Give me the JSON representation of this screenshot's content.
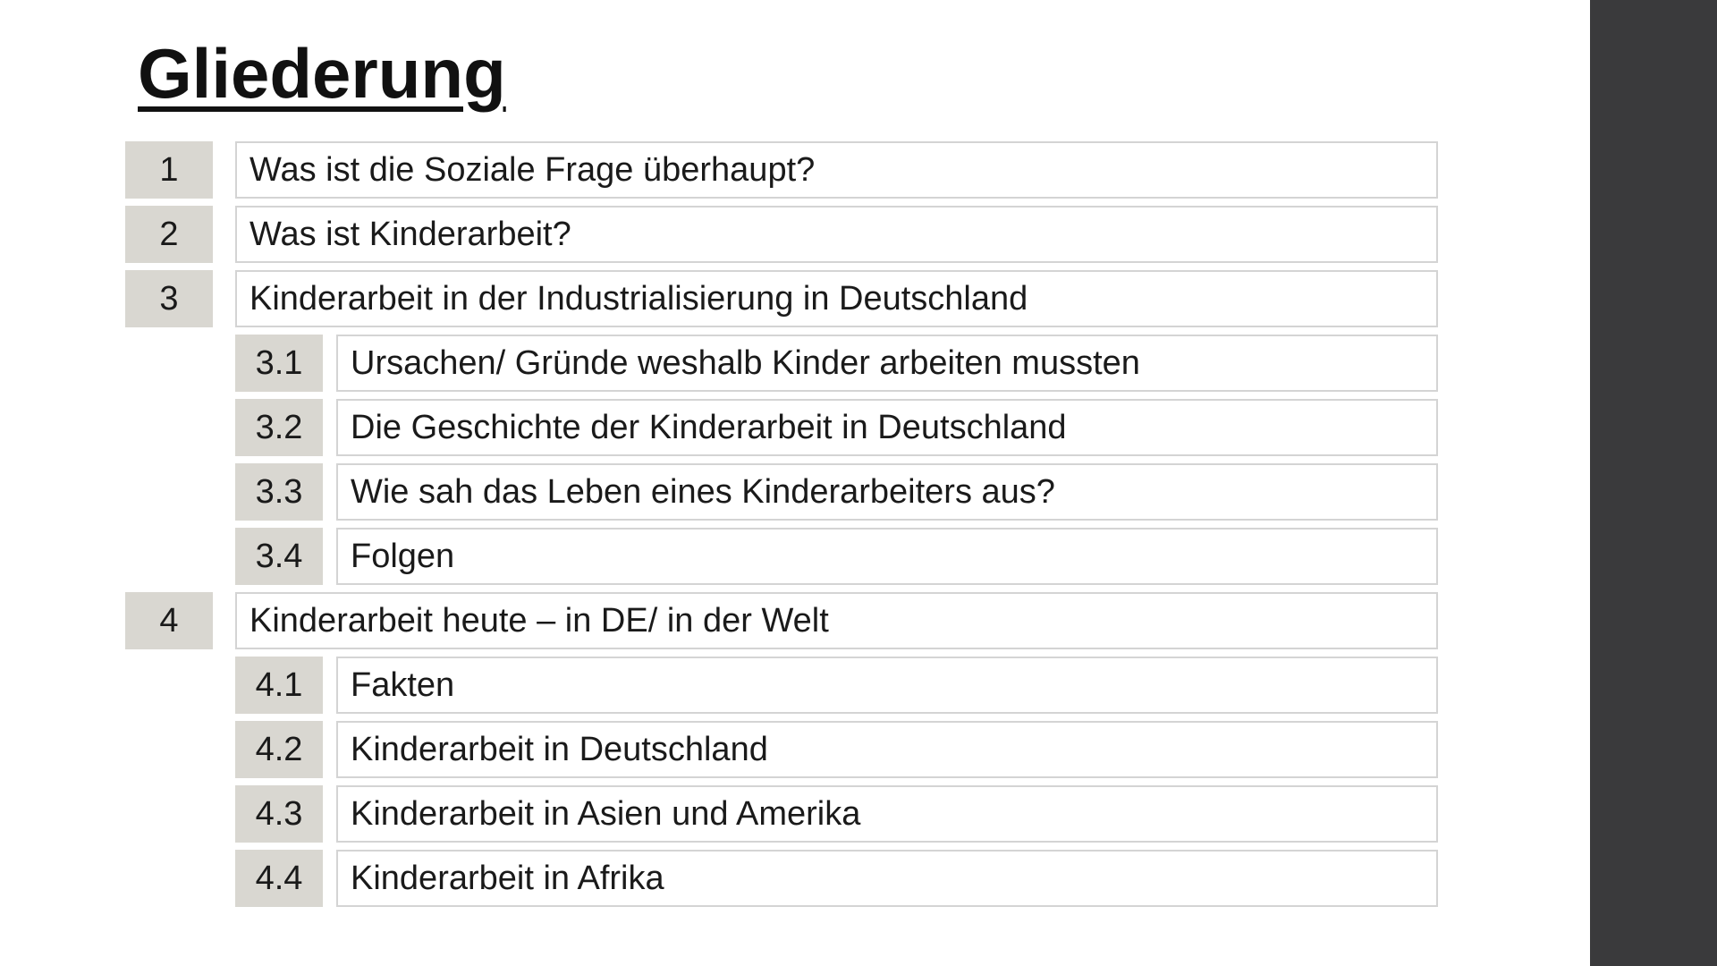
{
  "slide": {
    "title": "Gliederung",
    "colors": {
      "number_box": "#d9d7d1",
      "border": "#d4d4d4",
      "sidebar": "#3a3a3c",
      "text": "#1a1a1a"
    },
    "items": [
      {
        "number": "1",
        "text": "Was ist die Soziale Frage überhaupt?",
        "level": 1
      },
      {
        "number": "2",
        "text": "Was ist Kinderarbeit?",
        "level": 1
      },
      {
        "number": "3",
        "text": "Kinderarbeit in der Industrialisierung in Deutschland",
        "level": 1
      },
      {
        "number": "3.1",
        "text": "Ursachen/ Gründe weshalb Kinder arbeiten mussten",
        "level": 2
      },
      {
        "number": "3.2",
        "text": "Die Geschichte der Kinderarbeit in Deutschland",
        "level": 2
      },
      {
        "number": "3.3",
        "text": "Wie sah das Leben eines Kinderarbeiters aus?",
        "level": 2
      },
      {
        "number": "3.4",
        "text": "Folgen",
        "level": 2
      },
      {
        "number": "4",
        "text": "Kinderarbeit heute – in DE/ in der Welt",
        "level": 1
      },
      {
        "number": "4.1",
        "text": "Fakten",
        "level": 2
      },
      {
        "number": "4.2",
        "text": "Kinderarbeit in Deutschland",
        "level": 2
      },
      {
        "number": "4.3",
        "text": "Kinderarbeit in Asien und Amerika",
        "level": 2
      },
      {
        "number": "4.4",
        "text": "Kinderarbeit in Afrika",
        "level": 2
      }
    ]
  }
}
